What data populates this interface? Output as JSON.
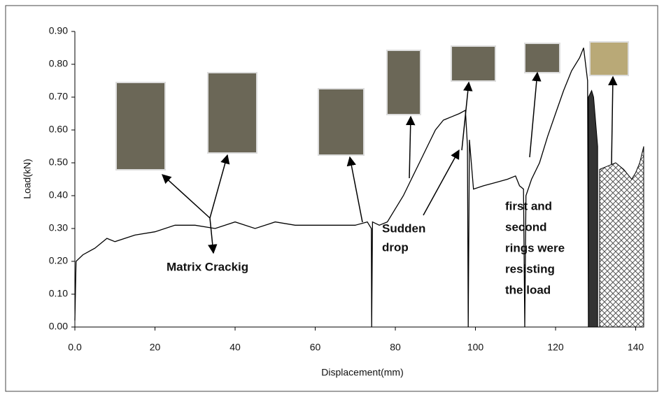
{
  "chart_data": {
    "type": "line",
    "ylabel": "Load(kN)",
    "xlabel": "Displacement(mm)",
    "xlim": [
      0,
      142
    ],
    "ylim": [
      0,
      0.9
    ],
    "xticks": [
      {
        "value": 0,
        "label": "0.0"
      },
      20,
      40,
      60,
      80,
      100,
      120,
      140
    ],
    "yticks": [
      {
        "value": 0,
        "label": "0.00"
      },
      {
        "value": 0.1,
        "label": "0.10"
      },
      {
        "value": 0.2,
        "label": "0.20"
      },
      {
        "value": 0.3,
        "label": "0.30"
      },
      {
        "value": 0.4,
        "label": "0.40"
      },
      {
        "value": 0.5,
        "label": "0.50"
      },
      {
        "value": 0.6,
        "label": "0.60"
      },
      {
        "value": 0.7,
        "label": "0.70"
      },
      {
        "value": 0.8,
        "label": "0.80"
      },
      {
        "value": 0.9,
        "label": "0.90"
      }
    ],
    "series": [
      {
        "color": "#000000",
        "x": [
          0,
          0.3,
          2,
          5,
          8,
          10,
          15,
          20,
          25,
          30,
          35,
          40,
          45,
          50,
          55,
          60,
          65,
          70,
          73,
          74,
          74.1,
          74.3,
          76,
          78,
          80,
          82,
          84,
          86,
          88,
          90,
          92,
          94,
          96,
          97.5,
          98,
          98.2,
          98.5,
          99.5,
          102,
          105,
          108,
          110,
          111,
          112,
          112.3,
          112.6,
          114,
          116,
          118,
          120,
          122,
          124,
          126,
          127,
          128,
          128.2
        ],
        "values": [
          0.02,
          0.2,
          0.22,
          0.24,
          0.27,
          0.26,
          0.28,
          0.29,
          0.31,
          0.31,
          0.3,
          0.32,
          0.3,
          0.32,
          0.31,
          0.31,
          0.31,
          0.31,
          0.32,
          0.3,
          0,
          0.32,
          0.31,
          0.32,
          0.36,
          0.4,
          0.45,
          0.5,
          0.55,
          0.6,
          0.63,
          0.64,
          0.65,
          0.66,
          0.55,
          0,
          0.57,
          0.42,
          0.43,
          0.44,
          0.45,
          0.46,
          0.43,
          0.42,
          0,
          0.4,
          0.45,
          0.5,
          0.58,
          0.65,
          0.72,
          0.78,
          0.82,
          0.85,
          0.75,
          0
        ]
      },
      {
        "color": "#333333",
        "x": [
          128.2,
          129,
          129.5,
          130.5
        ],
        "values": [
          0.7,
          0.72,
          0.7,
          0.55
        ]
      },
      {
        "color": "#999999",
        "x": [
          131,
          133,
          135,
          137,
          139,
          140,
          141,
          142
        ],
        "values": [
          0.48,
          0.49,
          0.5,
          0.48,
          0.45,
          0.47,
          0.5,
          0.55
        ]
      }
    ],
    "annotations": [
      "Matrix Crackig",
      "Sudden",
      "drop",
      "first and",
      "second",
      "rings were",
      "resisting",
      "the load"
    ]
  }
}
